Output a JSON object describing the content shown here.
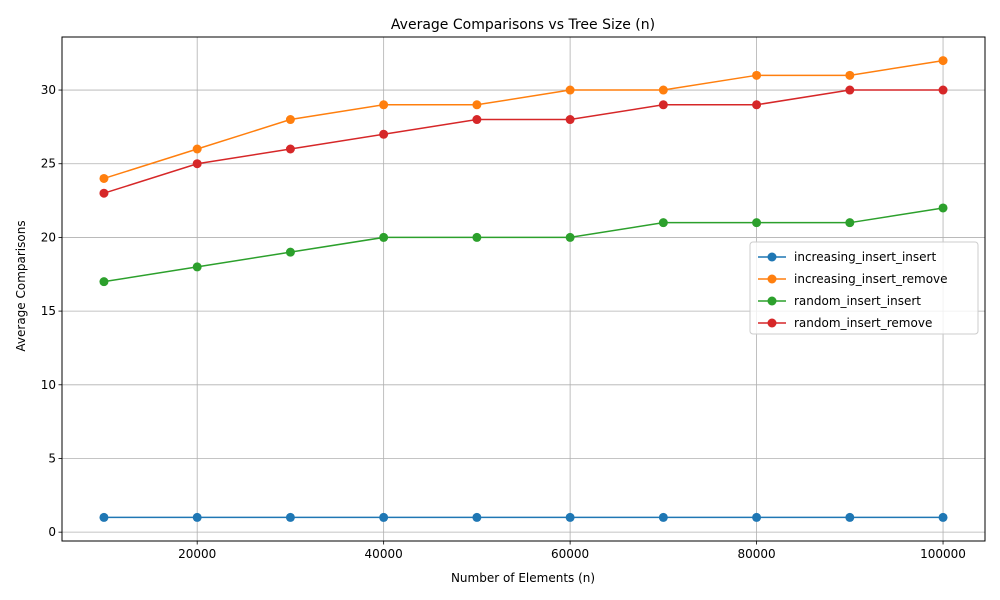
{
  "chart_data": {
    "type": "line",
    "title": "Average Comparisons vs Tree Size (n)",
    "xlabel": "Number of Elements (n)",
    "ylabel": "Average Comparisons",
    "x": [
      10000,
      20000,
      30000,
      40000,
      50000,
      60000,
      70000,
      80000,
      90000,
      100000
    ],
    "xlim": [
      5500,
      104500
    ],
    "ylim": [
      -0.6,
      33.6
    ],
    "xticks": [
      20000,
      40000,
      60000,
      80000,
      100000
    ],
    "yticks": [
      0,
      5,
      10,
      15,
      20,
      25,
      30
    ],
    "grid": true,
    "legend_position": "center-right",
    "series": [
      {
        "name": "increasing_insert_insert",
        "color": "#1f77b4",
        "values": [
          1,
          1,
          1,
          1,
          1,
          1,
          1,
          1,
          1,
          1
        ]
      },
      {
        "name": "increasing_insert_remove",
        "color": "#ff7f0e",
        "values": [
          24,
          26,
          28,
          29,
          29,
          30,
          30,
          31,
          31,
          32
        ]
      },
      {
        "name": "random_insert_insert",
        "color": "#2ca02c",
        "values": [
          17,
          18,
          19,
          20,
          20,
          20,
          21,
          21,
          21,
          22
        ]
      },
      {
        "name": "random_insert_remove",
        "color": "#d62728",
        "values": [
          23,
          25,
          26,
          27,
          28,
          28,
          29,
          29,
          30,
          30
        ]
      }
    ]
  }
}
